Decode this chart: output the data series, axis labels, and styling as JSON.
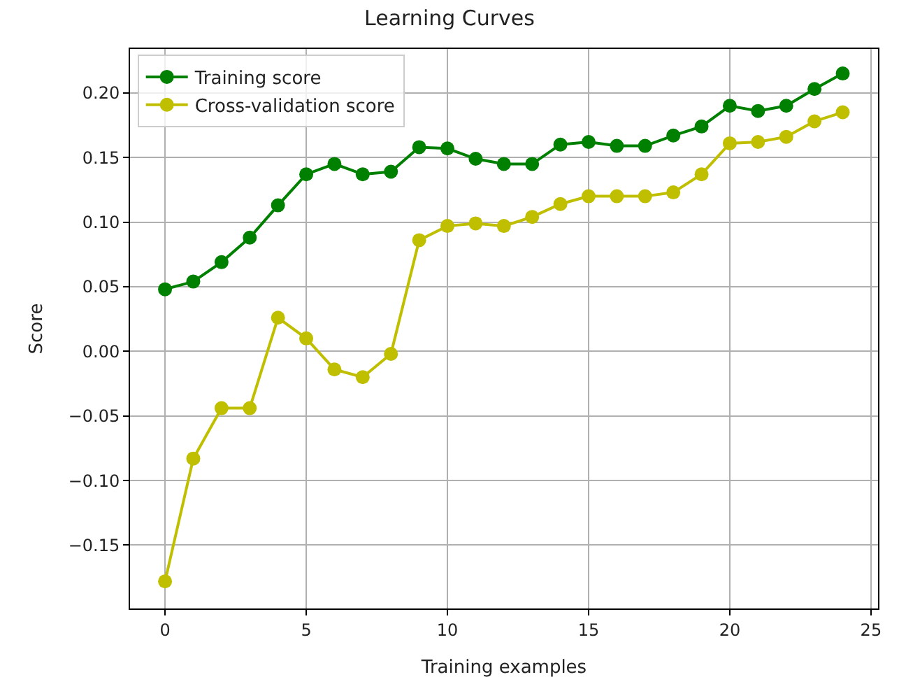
{
  "chart_data": {
    "type": "line",
    "title": "Learning Curves",
    "xlabel": "Training examples",
    "ylabel": "Score",
    "x": [
      0,
      1,
      2,
      3,
      4,
      5,
      6,
      7,
      8,
      9,
      10,
      11,
      12,
      13,
      14,
      15,
      16,
      17,
      18,
      19,
      20,
      21,
      22,
      23,
      24
    ],
    "series": [
      {
        "name": "Training score",
        "color": "#008000",
        "values": [
          0.048,
          0.054,
          0.069,
          0.088,
          0.113,
          0.137,
          0.145,
          0.137,
          0.139,
          0.158,
          0.157,
          0.149,
          0.145,
          0.145,
          0.16,
          0.162,
          0.159,
          0.159,
          0.167,
          0.174,
          0.19,
          0.186,
          0.19,
          0.203,
          0.215
        ]
      },
      {
        "name": "Cross-validation score",
        "color": "#bfbf00",
        "values": [
          -0.178,
          -0.083,
          -0.044,
          -0.044,
          0.026,
          0.01,
          -0.014,
          -0.02,
          -0.002,
          0.086,
          0.097,
          0.099,
          0.097,
          0.104,
          0.114,
          0.12,
          0.12,
          0.12,
          0.123,
          0.137,
          0.161,
          0.162,
          0.166,
          0.178,
          0.185
        ]
      }
    ],
    "xlim": [
      -1.24,
      25.25
    ],
    "xticks": [
      0,
      5,
      10,
      15,
      20,
      25
    ],
    "ylim": [
      -0.199,
      0.234
    ],
    "yticks": [
      {
        "value": -0.15,
        "label": "−0.15"
      },
      {
        "value": -0.1,
        "label": "−0.10"
      },
      {
        "value": -0.05,
        "label": "−0.05"
      },
      {
        "value": 0,
        "label": "0.00"
      },
      {
        "value": 0.05,
        "label": "0.05"
      },
      {
        "value": 0.1,
        "label": "0.10"
      },
      {
        "value": 0.15,
        "label": "0.15"
      },
      {
        "value": 0.2,
        "label": "0.20"
      }
    ],
    "grid": true,
    "legend": "top left",
    "marker": "circle",
    "line_style": "solid"
  }
}
